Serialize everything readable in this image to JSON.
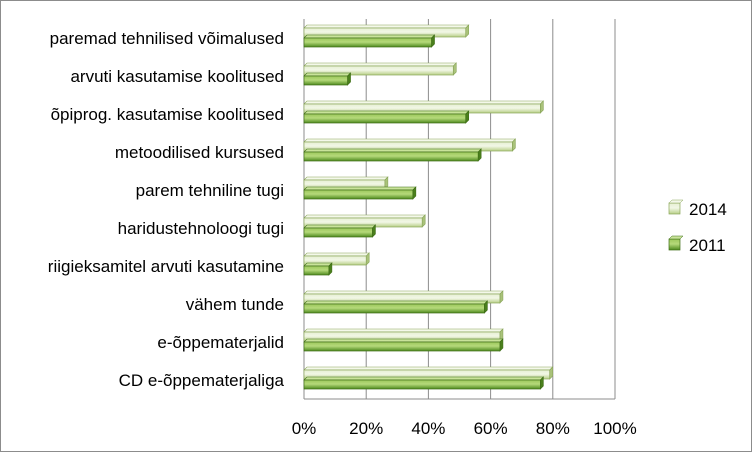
{
  "chart_data": {
    "type": "bar",
    "orientation": "horizontal",
    "categories": [
      "paremad tehnilised võimalused",
      "arvuti kasutamise koolitused",
      "õpiprog. kasutamise koolitused",
      "metoodilised kursused",
      "parem tehniline tugi",
      "haridustehnoloogi tugi",
      "riigieksamitel arvuti kasutamine",
      "vähem tunde",
      "e-õppematerjalid",
      "CD e-õppematerjaliga"
    ],
    "series": [
      {
        "name": "2014",
        "color": "#c4d99a",
        "values": [
          52,
          48,
          76,
          67,
          26,
          38,
          20,
          63,
          63,
          79
        ]
      },
      {
        "name": "2011",
        "color": "#6aa22e",
        "values": [
          41,
          14,
          52,
          56,
          35,
          22,
          8,
          58,
          63,
          76
        ]
      }
    ],
    "xlim": [
      0,
      100
    ],
    "xticks": [
      "0%",
      "20%",
      "40%",
      "60%",
      "80%",
      "100%"
    ],
    "grid": true,
    "legend_position": "right"
  }
}
